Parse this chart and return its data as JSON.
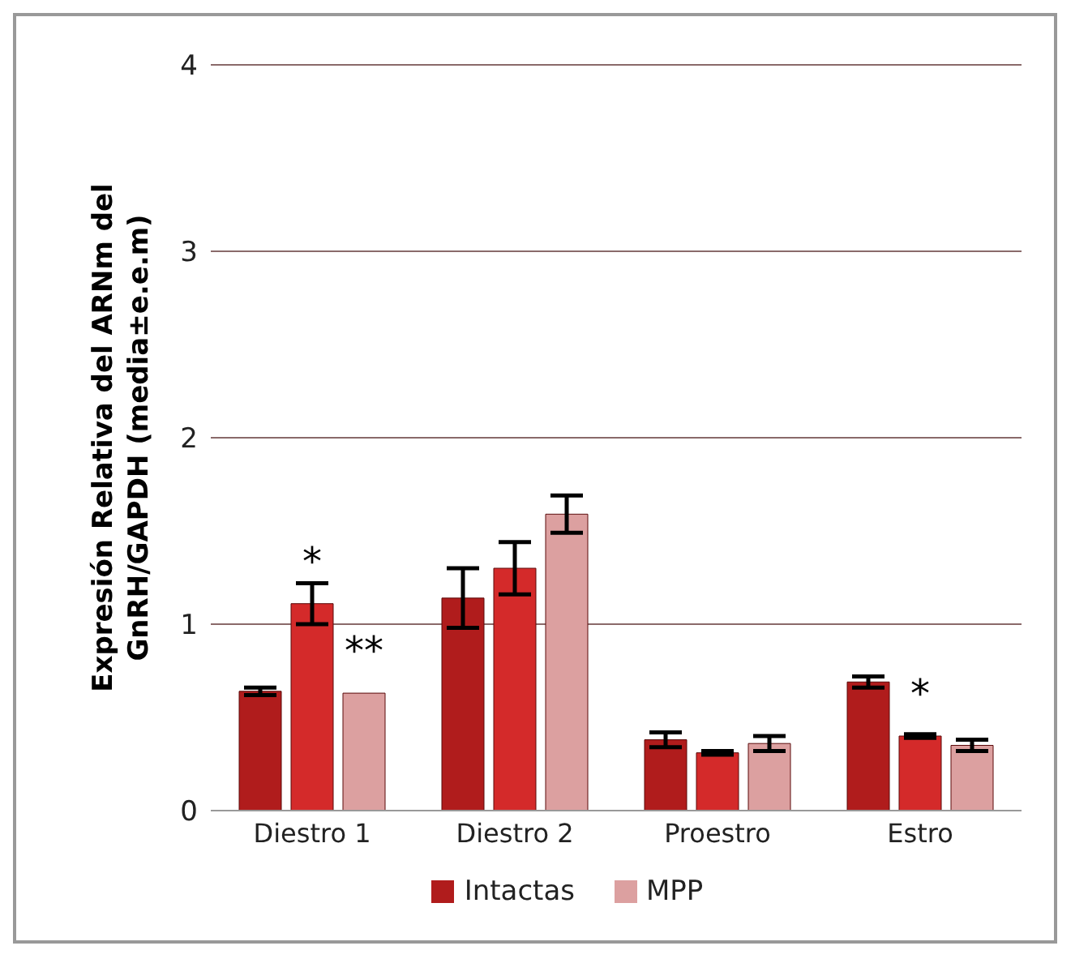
{
  "chart_data": {
    "type": "bar",
    "ylabel": "Expresión Relativa del ARNm del GnRH/GAPDH (media±e.e.m)",
    "categories": [
      "Diestro 1",
      "Diestro 2",
      "Proestro",
      "Estro"
    ],
    "series": [
      {
        "name": "Intactas",
        "color": "#b01c1c",
        "values": [
          0.64,
          1.14,
          0.38,
          0.69
        ],
        "errors": [
          0.02,
          0.16,
          0.04,
          0.03
        ]
      },
      {
        "color": "#d42a2a",
        "values": [
          1.11,
          1.3,
          0.31,
          0.4
        ],
        "errors": [
          0.11,
          0.14,
          0.01,
          0.01
        ],
        "value_labels": [
          "*",
          null,
          null,
          "*"
        ]
      },
      {
        "name": "MPP",
        "color": "#dca0a0",
        "values": [
          0.63,
          1.59,
          0.36,
          0.35
        ],
        "errors": [
          0.0,
          0.1,
          0.04,
          0.03
        ],
        "value_labels": [
          "**",
          null,
          null,
          null
        ]
      }
    ],
    "ylim": [
      0,
      4
    ],
    "yticks": [
      0,
      1,
      2,
      3,
      4
    ],
    "grid": "y",
    "legend": "bottom"
  }
}
